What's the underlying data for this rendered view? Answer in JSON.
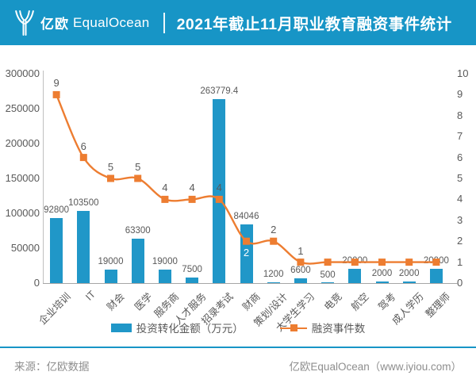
{
  "header": {
    "logo_cn": "亿欧",
    "logo_en": "EqualOcean",
    "title": "2021年截止11月职业教育融资事件统计",
    "accent_color": "#1795C6"
  },
  "chart_data": {
    "type": "combo",
    "title": "2021年截止11月职业教育融资事件统计",
    "categories": [
      "企业培训",
      "IT",
      "财会",
      "医学",
      "服务商",
      "人才服务",
      "招录考试",
      "财商",
      "策划/设计",
      "大学生学习",
      "电竞",
      "航空",
      "驾考",
      "成人学历",
      "整理师"
    ],
    "series": [
      {
        "name": "投资转化金额（万元）",
        "type": "bar",
        "axis": "left",
        "color": "#2097C8",
        "values": [
          92800,
          103500,
          19000,
          63300,
          19000,
          7500,
          263779.4,
          84046,
          1200,
          6600,
          500,
          20000,
          2000,
          2000,
          20000
        ],
        "labels": [
          "92800",
          "103500",
          "19000",
          "63300",
          "19000",
          "7500",
          "263779.4",
          "84046",
          "1200",
          "6600",
          "500",
          "20000",
          "2000",
          "2000",
          "20000"
        ]
      },
      {
        "name": "融资事件数",
        "type": "line",
        "axis": "right",
        "color": "#ED7D31",
        "values": [
          9,
          6,
          5,
          5,
          4,
          4,
          4,
          2,
          2,
          1,
          1,
          1,
          1,
          1,
          1
        ],
        "labels": [
          "9",
          "6",
          "5",
          "5",
          "4",
          "4",
          "4",
          "2",
          "2",
          "1",
          "",
          "",
          "",
          "",
          ""
        ]
      }
    ],
    "left_axis": {
      "min": 0,
      "max": 300000,
      "step": 50000,
      "tick_labels": [
        "0",
        "50000",
        "100000",
        "150000",
        "200000",
        "250000",
        "300000"
      ]
    },
    "right_axis": {
      "min": 0,
      "max": 10,
      "step": 1,
      "tick_labels": [
        "0",
        "1",
        "2",
        "3",
        "4",
        "5",
        "6",
        "7",
        "8",
        "9",
        "10"
      ]
    },
    "grid": false,
    "legend_position": "bottom",
    "line_label_below_indices": [
      7
    ],
    "axis_text_color": "#595959"
  },
  "footer": {
    "source": "来源：亿欧数据",
    "site": "亿欧EqualOcean（www.iyiou.com）"
  }
}
